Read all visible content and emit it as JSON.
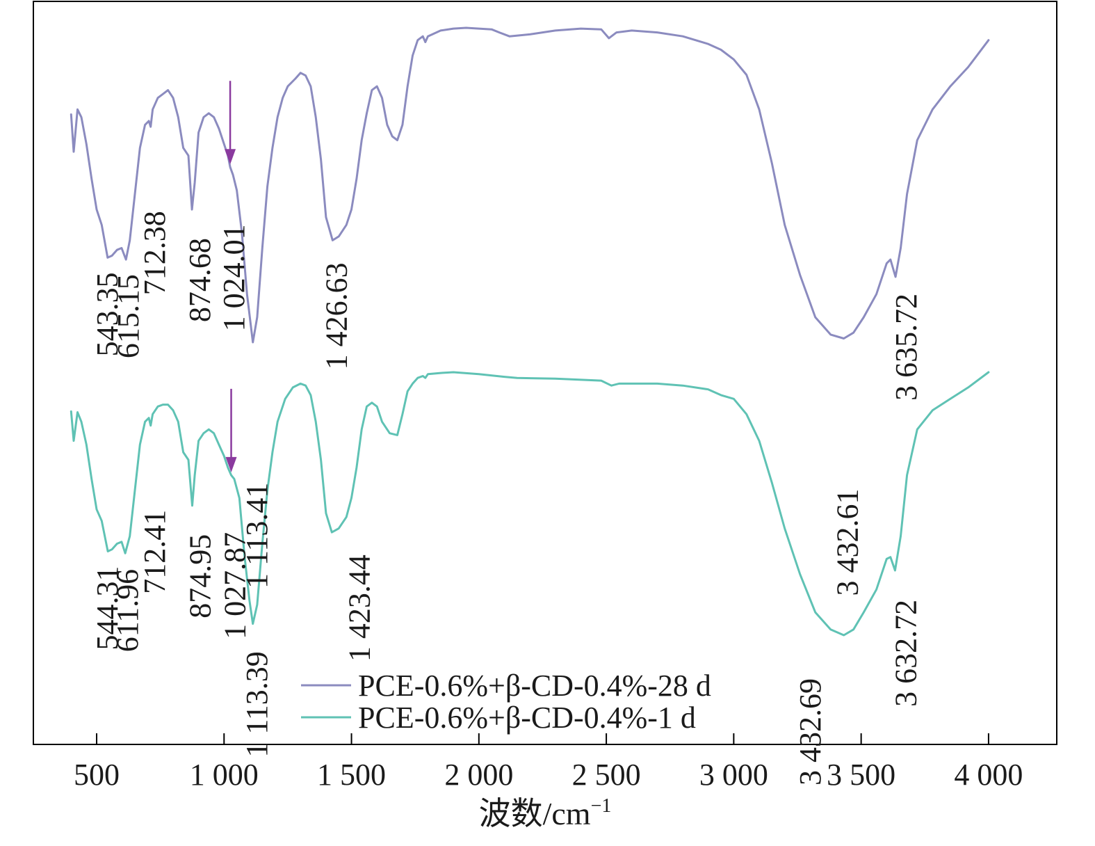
{
  "chart_data": {
    "type": "line",
    "title": "",
    "xlabel": "波数/cm",
    "xlabel_superscript": "−1",
    "ylabel": "",
    "xlim": [
      390,
      4250
    ],
    "x_ticks": [
      {
        "value": 500,
        "label": "500"
      },
      {
        "value": 1000,
        "label": "1 000"
      },
      {
        "value": 1500,
        "label": "1 500"
      },
      {
        "value": 2000,
        "label": "2 000"
      },
      {
        "value": 2500,
        "label": "2 500"
      },
      {
        "value": 3000,
        "label": "3 000"
      },
      {
        "value": 3500,
        "label": "3 500"
      },
      {
        "value": 4000,
        "label": "4 000"
      }
    ],
    "legend": {
      "position": "bottom-center",
      "entries": [
        {
          "name": "PCE-0.6%+β-CD-0.4%-28 d",
          "color": "#8b8bbf"
        },
        {
          "name": "PCE-0.6%+β-CD-0.4%-1 d",
          "color": "#5fc2b4"
        }
      ]
    },
    "arrow_color": "#8a3a9e",
    "series": [
      {
        "name": "PCE-0.6%+β-CD-0.4%-28 d",
        "color": "#8b8bbf",
        "points": [
          [
            400,
            0.727
          ],
          [
            410,
            0.63
          ],
          [
            425,
            0.74
          ],
          [
            440,
            0.72
          ],
          [
            460,
            0.65
          ],
          [
            480,
            0.56
          ],
          [
            500,
            0.48
          ],
          [
            520,
            0.44
          ],
          [
            543,
            0.355
          ],
          [
            560,
            0.36
          ],
          [
            580,
            0.375
          ],
          [
            598,
            0.38
          ],
          [
            615,
            0.35
          ],
          [
            630,
            0.4
          ],
          [
            650,
            0.52
          ],
          [
            670,
            0.64
          ],
          [
            690,
            0.7
          ],
          [
            705,
            0.71
          ],
          [
            712,
            0.695
          ],
          [
            720,
            0.74
          ],
          [
            740,
            0.77
          ],
          [
            760,
            0.78
          ],
          [
            780,
            0.79
          ],
          [
            800,
            0.77
          ],
          [
            820,
            0.72
          ],
          [
            840,
            0.64
          ],
          [
            860,
            0.62
          ],
          [
            874,
            0.48
          ],
          [
            885,
            0.55
          ],
          [
            900,
            0.68
          ],
          [
            920,
            0.72
          ],
          [
            940,
            0.73
          ],
          [
            960,
            0.72
          ],
          [
            980,
            0.69
          ],
          [
            1000,
            0.65
          ],
          [
            1015,
            0.62
          ],
          [
            1024,
            0.59
          ],
          [
            1035,
            0.57
          ],
          [
            1050,
            0.53
          ],
          [
            1070,
            0.42
          ],
          [
            1090,
            0.26
          ],
          [
            1113,
            0.135
          ],
          [
            1130,
            0.2
          ],
          [
            1150,
            0.38
          ],
          [
            1170,
            0.54
          ],
          [
            1190,
            0.64
          ],
          [
            1210,
            0.72
          ],
          [
            1230,
            0.77
          ],
          [
            1250,
            0.8
          ],
          [
            1280,
            0.82
          ],
          [
            1300,
            0.835
          ],
          [
            1320,
            0.828
          ],
          [
            1340,
            0.8
          ],
          [
            1360,
            0.72
          ],
          [
            1380,
            0.61
          ],
          [
            1400,
            0.46
          ],
          [
            1426,
            0.4
          ],
          [
            1450,
            0.41
          ],
          [
            1480,
            0.44
          ],
          [
            1500,
            0.48
          ],
          [
            1520,
            0.56
          ],
          [
            1540,
            0.66
          ],
          [
            1560,
            0.73
          ],
          [
            1580,
            0.79
          ],
          [
            1600,
            0.8
          ],
          [
            1620,
            0.77
          ],
          [
            1640,
            0.7
          ],
          [
            1660,
            0.67
          ],
          [
            1680,
            0.66
          ],
          [
            1700,
            0.7
          ],
          [
            1720,
            0.8
          ],
          [
            1740,
            0.88
          ],
          [
            1760,
            0.92
          ],
          [
            1780,
            0.93
          ],
          [
            1790,
            0.915
          ],
          [
            1800,
            0.93
          ],
          [
            1850,
            0.945
          ],
          [
            1900,
            0.95
          ],
          [
            1950,
            0.952
          ],
          [
            2000,
            0.95
          ],
          [
            2050,
            0.948
          ],
          [
            2080,
            0.94
          ],
          [
            2120,
            0.93
          ],
          [
            2200,
            0.935
          ],
          [
            2300,
            0.945
          ],
          [
            2400,
            0.95
          ],
          [
            2480,
            0.948
          ],
          [
            2510,
            0.925
          ],
          [
            2540,
            0.94
          ],
          [
            2600,
            0.945
          ],
          [
            2700,
            0.94
          ],
          [
            2800,
            0.93
          ],
          [
            2850,
            0.92
          ],
          [
            2900,
            0.91
          ],
          [
            2950,
            0.895
          ],
          [
            3000,
            0.87
          ],
          [
            3050,
            0.83
          ],
          [
            3100,
            0.74
          ],
          [
            3150,
            0.6
          ],
          [
            3200,
            0.44
          ],
          [
            3260,
            0.31
          ],
          [
            3320,
            0.2
          ],
          [
            3380,
            0.155
          ],
          [
            3432,
            0.145
          ],
          [
            3470,
            0.16
          ],
          [
            3510,
            0.2
          ],
          [
            3560,
            0.26
          ],
          [
            3600,
            0.34
          ],
          [
            3615,
            0.35
          ],
          [
            3635,
            0.305
          ],
          [
            3655,
            0.38
          ],
          [
            3680,
            0.52
          ],
          [
            3720,
            0.66
          ],
          [
            3780,
            0.74
          ],
          [
            3850,
            0.8
          ],
          [
            3920,
            0.85
          ],
          [
            4000,
            0.92
          ]
        ]
      },
      {
        "name": "PCE-0.6%+β-CD-0.4%-1 d",
        "color": "#5fc2b4",
        "points": [
          [
            400,
            0.727
          ],
          [
            410,
            0.65
          ],
          [
            425,
            0.725
          ],
          [
            440,
            0.7
          ],
          [
            460,
            0.64
          ],
          [
            480,
            0.55
          ],
          [
            500,
            0.47
          ],
          [
            520,
            0.44
          ],
          [
            544,
            0.36
          ],
          [
            560,
            0.365
          ],
          [
            580,
            0.38
          ],
          [
            598,
            0.385
          ],
          [
            612,
            0.355
          ],
          [
            630,
            0.4
          ],
          [
            650,
            0.52
          ],
          [
            670,
            0.64
          ],
          [
            690,
            0.7
          ],
          [
            705,
            0.71
          ],
          [
            712,
            0.69
          ],
          [
            720,
            0.72
          ],
          [
            740,
            0.74
          ],
          [
            760,
            0.745
          ],
          [
            780,
            0.745
          ],
          [
            800,
            0.73
          ],
          [
            820,
            0.7
          ],
          [
            840,
            0.62
          ],
          [
            860,
            0.6
          ],
          [
            875,
            0.48
          ],
          [
            885,
            0.56
          ],
          [
            900,
            0.65
          ],
          [
            920,
            0.67
          ],
          [
            940,
            0.68
          ],
          [
            960,
            0.67
          ],
          [
            980,
            0.64
          ],
          [
            1000,
            0.61
          ],
          [
            1015,
            0.58
          ],
          [
            1028,
            0.56
          ],
          [
            1040,
            0.55
          ],
          [
            1060,
            0.5
          ],
          [
            1080,
            0.35
          ],
          [
            1100,
            0.23
          ],
          [
            1113,
            0.17
          ],
          [
            1130,
            0.22
          ],
          [
            1150,
            0.38
          ],
          [
            1170,
            0.52
          ],
          [
            1190,
            0.62
          ],
          [
            1210,
            0.7
          ],
          [
            1240,
            0.76
          ],
          [
            1270,
            0.79
          ],
          [
            1300,
            0.8
          ],
          [
            1320,
            0.795
          ],
          [
            1340,
            0.77
          ],
          [
            1360,
            0.7
          ],
          [
            1380,
            0.6
          ],
          [
            1400,
            0.46
          ],
          [
            1423,
            0.41
          ],
          [
            1450,
            0.42
          ],
          [
            1480,
            0.45
          ],
          [
            1500,
            0.5
          ],
          [
            1520,
            0.58
          ],
          [
            1540,
            0.68
          ],
          [
            1560,
            0.74
          ],
          [
            1580,
            0.75
          ],
          [
            1600,
            0.74
          ],
          [
            1620,
            0.7
          ],
          [
            1650,
            0.67
          ],
          [
            1680,
            0.665
          ],
          [
            1700,
            0.72
          ],
          [
            1720,
            0.78
          ],
          [
            1740,
            0.8
          ],
          [
            1760,
            0.815
          ],
          [
            1780,
            0.82
          ],
          [
            1790,
            0.815
          ],
          [
            1800,
            0.825
          ],
          [
            1850,
            0.828
          ],
          [
            1900,
            0.83
          ],
          [
            2000,
            0.825
          ],
          [
            2100,
            0.818
          ],
          [
            2150,
            0.815
          ],
          [
            2300,
            0.813
          ],
          [
            2480,
            0.808
          ],
          [
            2520,
            0.795
          ],
          [
            2550,
            0.8
          ],
          [
            2700,
            0.8
          ],
          [
            2800,
            0.795
          ],
          [
            2900,
            0.785
          ],
          [
            2950,
            0.77
          ],
          [
            3000,
            0.76
          ],
          [
            3050,
            0.72
          ],
          [
            3100,
            0.65
          ],
          [
            3150,
            0.54
          ],
          [
            3200,
            0.42
          ],
          [
            3260,
            0.3
          ],
          [
            3320,
            0.2
          ],
          [
            3380,
            0.155
          ],
          [
            3432,
            0.14
          ],
          [
            3470,
            0.155
          ],
          [
            3510,
            0.2
          ],
          [
            3560,
            0.26
          ],
          [
            3600,
            0.34
          ],
          [
            3615,
            0.345
          ],
          [
            3633,
            0.31
          ],
          [
            3655,
            0.4
          ],
          [
            3680,
            0.56
          ],
          [
            3720,
            0.68
          ],
          [
            3780,
            0.73
          ],
          [
            3850,
            0.76
          ],
          [
            3920,
            0.79
          ],
          [
            4000,
            0.83
          ]
        ]
      }
    ],
    "annotations": [
      {
        "series": 0,
        "label": "543.35",
        "x": 543
      },
      {
        "series": 0,
        "label": "615.15",
        "x": 615
      },
      {
        "series": 0,
        "label": "712.38",
        "x": 712
      },
      {
        "series": 0,
        "label": "874.68",
        "x": 874
      },
      {
        "series": 0,
        "label": "1 024.01",
        "x": 1024
      },
      {
        "series": 0,
        "label": "1 113.41",
        "x": 1113
      },
      {
        "series": 0,
        "label": "1 426.63",
        "x": 1426
      },
      {
        "series": 0,
        "label": "3 432.61",
        "x": 3432
      },
      {
        "series": 0,
        "label": "3 635.72",
        "x": 3635
      },
      {
        "series": 1,
        "label": "544.31",
        "x": 544
      },
      {
        "series": 1,
        "label": "611.96",
        "x": 612
      },
      {
        "series": 1,
        "label": "712.41",
        "x": 712
      },
      {
        "series": 1,
        "label": "874.95",
        "x": 875
      },
      {
        "series": 1,
        "label": "1 027.87",
        "x": 1028
      },
      {
        "series": 1,
        "label": "1 113.39",
        "x": 1113
      },
      {
        "series": 1,
        "label": "1 423.44",
        "x": 1423
      },
      {
        "series": 1,
        "label": "3 432.69",
        "x": 3432
      },
      {
        "series": 1,
        "label": "3 632.72",
        "x": 3633
      }
    ],
    "arrows": [
      {
        "series": 0,
        "x": 1024
      },
      {
        "series": 1,
        "x": 1028
      }
    ]
  }
}
